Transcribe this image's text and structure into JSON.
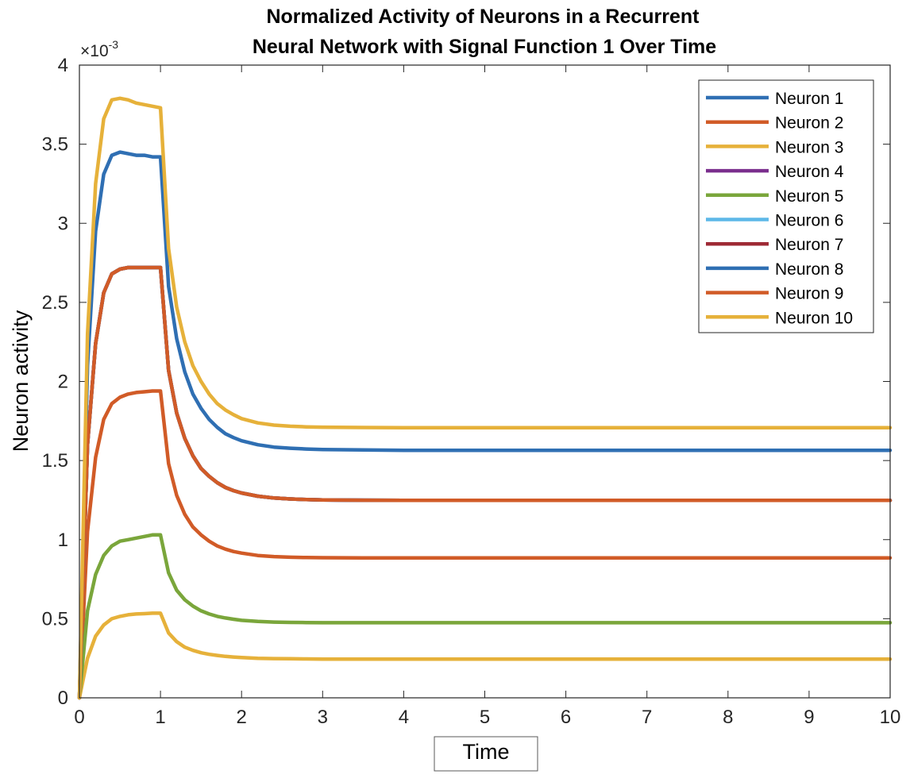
{
  "chart_data": {
    "type": "line",
    "title": [
      "Normalized Activity of Neurons in a Recurrent",
      "Neural Network with Signal Function 1 Over Time"
    ],
    "xlabel": "Time",
    "ylabel": "Neuron activity",
    "y_exponent_label": "×10",
    "y_exponent_power": "-3",
    "xlim": [
      0,
      10
    ],
    "ylim": [
      0,
      4
    ],
    "x_ticks": [
      "0",
      "1",
      "2",
      "3",
      "4",
      "5",
      "6",
      "7",
      "8",
      "9",
      "10"
    ],
    "y_ticks": [
      "0",
      "0.5",
      "1",
      "1.5",
      "2",
      "2.5",
      "3",
      "3.5",
      "4"
    ],
    "y_tick_values": [
      0,
      0.5,
      1,
      1.5,
      2,
      2.5,
      3,
      3.5,
      4
    ],
    "x_tick_values": [
      0,
      1,
      2,
      3,
      4,
      5,
      6,
      7,
      8,
      9,
      10
    ],
    "legend_position": "top-right",
    "x": [
      0,
      0.1,
      0.2,
      0.3,
      0.4,
      0.5,
      0.6,
      0.7,
      0.8,
      0.9,
      1.0,
      1.1,
      1.2,
      1.3,
      1.4,
      1.5,
      1.6,
      1.7,
      1.8,
      1.9,
      2.0,
      2.2,
      2.4,
      2.6,
      2.8,
      3.0,
      3.5,
      4.0,
      5.0,
      6.0,
      7.0,
      8.0,
      9.0,
      10.0
    ],
    "series": [
      {
        "name": "Neuron 1",
        "color": "#2f6fb3",
        "values": [
          0,
          2.1,
          2.95,
          3.31,
          3.43,
          3.45,
          3.44,
          3.43,
          3.43,
          3.42,
          3.42,
          2.6,
          2.27,
          2.06,
          1.92,
          1.83,
          1.76,
          1.71,
          1.67,
          1.645,
          1.625,
          1.6,
          1.585,
          1.578,
          1.573,
          1.57,
          1.567,
          1.565,
          1.565,
          1.565,
          1.565,
          1.565,
          1.565,
          1.565
        ]
      },
      {
        "name": "Neuron 2",
        "color": "#d15b27",
        "values": [
          0,
          1.05,
          1.52,
          1.76,
          1.86,
          1.9,
          1.92,
          1.93,
          1.935,
          1.94,
          1.94,
          1.48,
          1.28,
          1.16,
          1.08,
          1.03,
          0.99,
          0.96,
          0.94,
          0.925,
          0.915,
          0.9,
          0.893,
          0.889,
          0.887,
          0.886,
          0.885,
          0.885,
          0.885,
          0.885,
          0.885,
          0.885,
          0.885,
          0.885
        ]
      },
      {
        "name": "Neuron 3",
        "color": "#e6b13a",
        "values": [
          0,
          0.25,
          0.39,
          0.46,
          0.5,
          0.515,
          0.525,
          0.53,
          0.532,
          0.535,
          0.535,
          0.41,
          0.355,
          0.32,
          0.3,
          0.285,
          0.275,
          0.268,
          0.262,
          0.258,
          0.255,
          0.25,
          0.248,
          0.247,
          0.246,
          0.245,
          0.245,
          0.245,
          0.245,
          0.245,
          0.245,
          0.245,
          0.245,
          0.245
        ]
      },
      {
        "name": "Neuron 4",
        "color": "#7b2f8e",
        "values": [
          0,
          1.6,
          2.24,
          2.56,
          2.68,
          2.71,
          2.72,
          2.72,
          2.72,
          2.72,
          2.72,
          2.07,
          1.8,
          1.64,
          1.53,
          1.45,
          1.4,
          1.36,
          1.33,
          1.31,
          1.295,
          1.275,
          1.263,
          1.257,
          1.253,
          1.251,
          1.249,
          1.248,
          1.248,
          1.248,
          1.248,
          1.248,
          1.248,
          1.248
        ]
      },
      {
        "name": "Neuron 5",
        "color": "#7aa63b",
        "values": [
          0,
          0.55,
          0.78,
          0.9,
          0.96,
          0.99,
          1.0,
          1.01,
          1.02,
          1.03,
          1.03,
          0.79,
          0.68,
          0.62,
          0.58,
          0.55,
          0.53,
          0.515,
          0.505,
          0.497,
          0.49,
          0.483,
          0.479,
          0.477,
          0.476,
          0.475,
          0.475,
          0.475,
          0.475,
          0.475,
          0.475,
          0.475,
          0.475,
          0.475
        ]
      },
      {
        "name": "Neuron 6",
        "color": "#5db8e8",
        "values": [
          0,
          1.6,
          2.24,
          2.56,
          2.68,
          2.71,
          2.72,
          2.72,
          2.72,
          2.72,
          2.72,
          2.07,
          1.8,
          1.64,
          1.53,
          1.45,
          1.4,
          1.36,
          1.33,
          1.31,
          1.295,
          1.275,
          1.263,
          1.257,
          1.253,
          1.251,
          1.249,
          1.248,
          1.248,
          1.248,
          1.248,
          1.248,
          1.248,
          1.248
        ]
      },
      {
        "name": "Neuron 7",
        "color": "#9e2a35",
        "values": [
          0,
          1.6,
          2.24,
          2.56,
          2.68,
          2.71,
          2.72,
          2.72,
          2.72,
          2.72,
          2.72,
          2.07,
          1.8,
          1.64,
          1.53,
          1.45,
          1.4,
          1.36,
          1.33,
          1.31,
          1.295,
          1.275,
          1.263,
          1.257,
          1.253,
          1.251,
          1.249,
          1.248,
          1.248,
          1.248,
          1.248,
          1.248,
          1.248,
          1.248
        ]
      },
      {
        "name": "Neuron 8",
        "color": "#2f6fb3",
        "values": [
          0,
          1.6,
          2.24,
          2.56,
          2.68,
          2.71,
          2.72,
          2.72,
          2.72,
          2.72,
          2.72,
          2.07,
          1.8,
          1.64,
          1.53,
          1.45,
          1.4,
          1.36,
          1.33,
          1.31,
          1.295,
          1.275,
          1.263,
          1.257,
          1.253,
          1.251,
          1.249,
          1.248,
          1.248,
          1.248,
          1.248,
          1.248,
          1.248,
          1.248
        ]
      },
      {
        "name": "Neuron 9",
        "color": "#d15b27",
        "values": [
          0,
          1.6,
          2.24,
          2.56,
          2.68,
          2.71,
          2.72,
          2.72,
          2.72,
          2.72,
          2.72,
          2.07,
          1.8,
          1.64,
          1.53,
          1.45,
          1.4,
          1.36,
          1.33,
          1.31,
          1.295,
          1.275,
          1.263,
          1.257,
          1.253,
          1.251,
          1.249,
          1.248,
          1.248,
          1.248,
          1.248,
          1.248,
          1.248,
          1.248
        ]
      },
      {
        "name": "Neuron 10",
        "color": "#e6b13a",
        "values": [
          0,
          2.3,
          3.25,
          3.66,
          3.78,
          3.79,
          3.78,
          3.76,
          3.75,
          3.74,
          3.73,
          2.84,
          2.47,
          2.25,
          2.1,
          2.0,
          1.92,
          1.86,
          1.82,
          1.79,
          1.765,
          1.738,
          1.724,
          1.717,
          1.713,
          1.711,
          1.709,
          1.708,
          1.708,
          1.708,
          1.708,
          1.708,
          1.708,
          1.708
        ]
      }
    ]
  }
}
